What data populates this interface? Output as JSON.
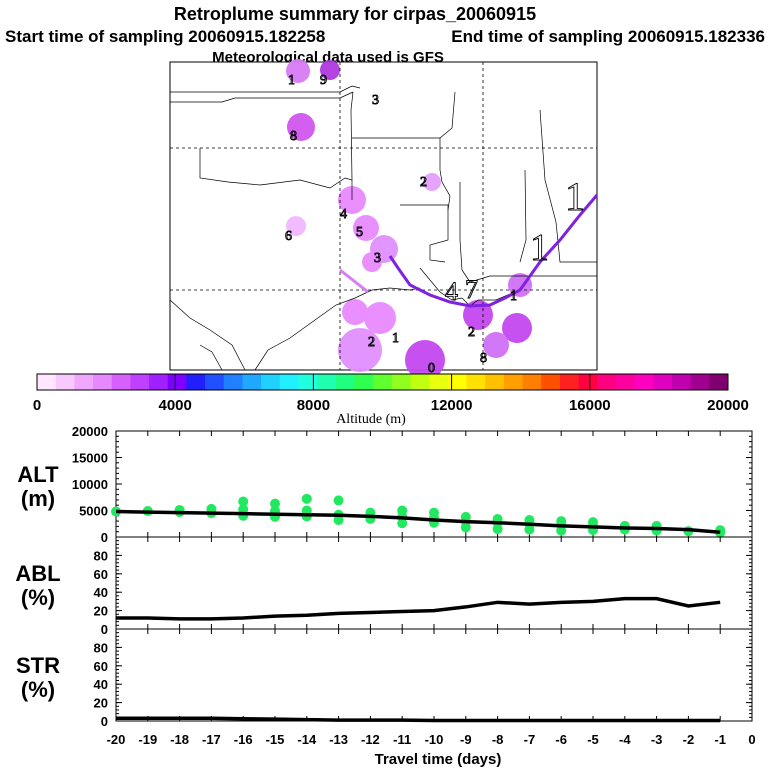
{
  "titles": {
    "main": "Retroplume summary for cirpas_20060915",
    "start": "Start time of sampling 20060915.182258",
    "end": "End time of sampling 20060915.182336",
    "met": "Meteorological data used is GFS"
  },
  "colorbar": {
    "label": "Altitude (m)",
    "ticks": [
      "0",
      "4000",
      "8000",
      "12000",
      "16000",
      "20000"
    ],
    "colors": [
      "#ffe8ff",
      "#f8c8ff",
      "#f0a8ff",
      "#e888ff",
      "#d860ff",
      "#c040ff",
      "#a020ff",
      "#8000ff",
      "#2020ff",
      "#2050ff",
      "#2080ff",
      "#20a8ff",
      "#20d0ff",
      "#20f0ff",
      "#20ffe0",
      "#20ffb0",
      "#20ff80",
      "#30ff50",
      "#60ff30",
      "#90ff20",
      "#c0ff10",
      "#e8ff10",
      "#ffff00",
      "#ffe000",
      "#ffc000",
      "#ffa000",
      "#ff8000",
      "#ff5000",
      "#ff2020",
      "#ff0040",
      "#ff0080",
      "#ff00a0",
      "#ff00c0",
      "#e000c0",
      "#c000b0",
      "#a00090",
      "#800070"
    ]
  },
  "map_labels": {
    "plume_day_numbers": [
      "1",
      "9",
      "3",
      "8",
      "2",
      "6",
      "4",
      "5",
      "3",
      "1",
      "1",
      "7",
      "4",
      "2",
      "8",
      "2",
      "1",
      "0",
      "1"
    ]
  },
  "chart_data": [
    {
      "type": "line+scatter",
      "name": "ALT",
      "ylabel": "ALT (m)",
      "ylabel_lines": [
        "ALT",
        "(m)"
      ],
      "ylim": [
        0,
        20000
      ],
      "yticks": [
        "0",
        "5000",
        "10000",
        "15000",
        "20000"
      ],
      "x": [
        -20,
        -19,
        -18,
        -17,
        -16,
        -15,
        -14,
        -13,
        -12,
        -11,
        -10,
        -9,
        -8,
        -7,
        -6,
        -5,
        -4,
        -3,
        -2,
        -1
      ],
      "values": [
        4800,
        4700,
        4600,
        4500,
        4400,
        4300,
        4200,
        4100,
        3900,
        3600,
        3200,
        2900,
        2700,
        2400,
        2100,
        1900,
        1700,
        1600,
        1400,
        900
      ],
      "scatter_color": "#22e860",
      "scatter_points": [
        [
          -20,
          4800
        ],
        [
          -19,
          4900
        ],
        [
          -18,
          4700
        ],
        [
          -18,
          5100
        ],
        [
          -17,
          4500
        ],
        [
          -17,
          5300
        ],
        [
          -16,
          4000
        ],
        [
          -16,
          5200
        ],
        [
          -16,
          6700
        ],
        [
          -15,
          3800
        ],
        [
          -15,
          4900
        ],
        [
          -15,
          6300
        ],
        [
          -14,
          3900
        ],
        [
          -14,
          5000
        ],
        [
          -14,
          7200
        ],
        [
          -13,
          3200
        ],
        [
          -13,
          4200
        ],
        [
          -13,
          6900
        ],
        [
          -12,
          3400
        ],
        [
          -12,
          4600
        ],
        [
          -11,
          2600
        ],
        [
          -11,
          3800
        ],
        [
          -11,
          5000
        ],
        [
          -10,
          2700
        ],
        [
          -10,
          3600
        ],
        [
          -10,
          4600
        ],
        [
          -9,
          1800
        ],
        [
          -9,
          2900
        ],
        [
          -9,
          3800
        ],
        [
          -8,
          1500
        ],
        [
          -8,
          2700
        ],
        [
          -8,
          3400
        ],
        [
          -7,
          1400
        ],
        [
          -7,
          2500
        ],
        [
          -7,
          3200
        ],
        [
          -6,
          1200
        ],
        [
          -6,
          2300
        ],
        [
          -6,
          3000
        ],
        [
          -5,
          1300
        ],
        [
          -5,
          2100
        ],
        [
          -5,
          2800
        ],
        [
          -4,
          1400
        ],
        [
          -4,
          2100
        ],
        [
          -3,
          1200
        ],
        [
          -3,
          2100
        ],
        [
          -2,
          1100
        ],
        [
          -1,
          800
        ],
        [
          -1,
          1300
        ]
      ]
    },
    {
      "type": "line",
      "name": "ABL",
      "ylabel": "ABL (%)",
      "ylabel_lines": [
        "ABL",
        "(%)"
      ],
      "ylim": [
        0,
        100
      ],
      "yticks": [
        "0",
        "20",
        "40",
        "60",
        "80"
      ],
      "x": [
        -20,
        -19,
        -18,
        -17,
        -16,
        -15,
        -14,
        -13,
        -12,
        -11,
        -10,
        -9,
        -8,
        -7,
        -6,
        -5,
        -4,
        -3,
        -2,
        -1
      ],
      "values": [
        12,
        12,
        11,
        11,
        12,
        14,
        15,
        17,
        18,
        19,
        20,
        24,
        29,
        27,
        29,
        30,
        33,
        33,
        25,
        29
      ]
    },
    {
      "type": "line",
      "name": "STR",
      "ylabel": "STR (%)",
      "ylabel_lines": [
        "STR",
        "(%)"
      ],
      "ylim": [
        0,
        100
      ],
      "yticks": [
        "0",
        "20",
        "40",
        "60",
        "80"
      ],
      "x": [
        -20,
        -19,
        -18,
        -17,
        -16,
        -15,
        -14,
        -13,
        -12,
        -11,
        -10,
        -9,
        -8,
        -7,
        -6,
        -5,
        -4,
        -3,
        -2,
        -1
      ],
      "values": [
        3,
        3,
        3,
        3,
        2.5,
        2,
        1.5,
        1,
        1,
        1,
        0.5,
        0.5,
        0.5,
        0.5,
        0.5,
        0.5,
        0.5,
        0.5,
        0.5,
        0.5
      ],
      "xlabel": "Travel time (days)",
      "xlim": [
        -20,
        0
      ],
      "xticks": [
        "-20",
        "-19",
        "-18",
        "-17",
        "-16",
        "-15",
        "-14",
        "-13",
        "-12",
        "-11",
        "-10",
        "-9",
        "-8",
        "-7",
        "-6",
        "-5",
        "-4",
        "-3",
        "-2",
        "-1",
        "0"
      ]
    }
  ]
}
